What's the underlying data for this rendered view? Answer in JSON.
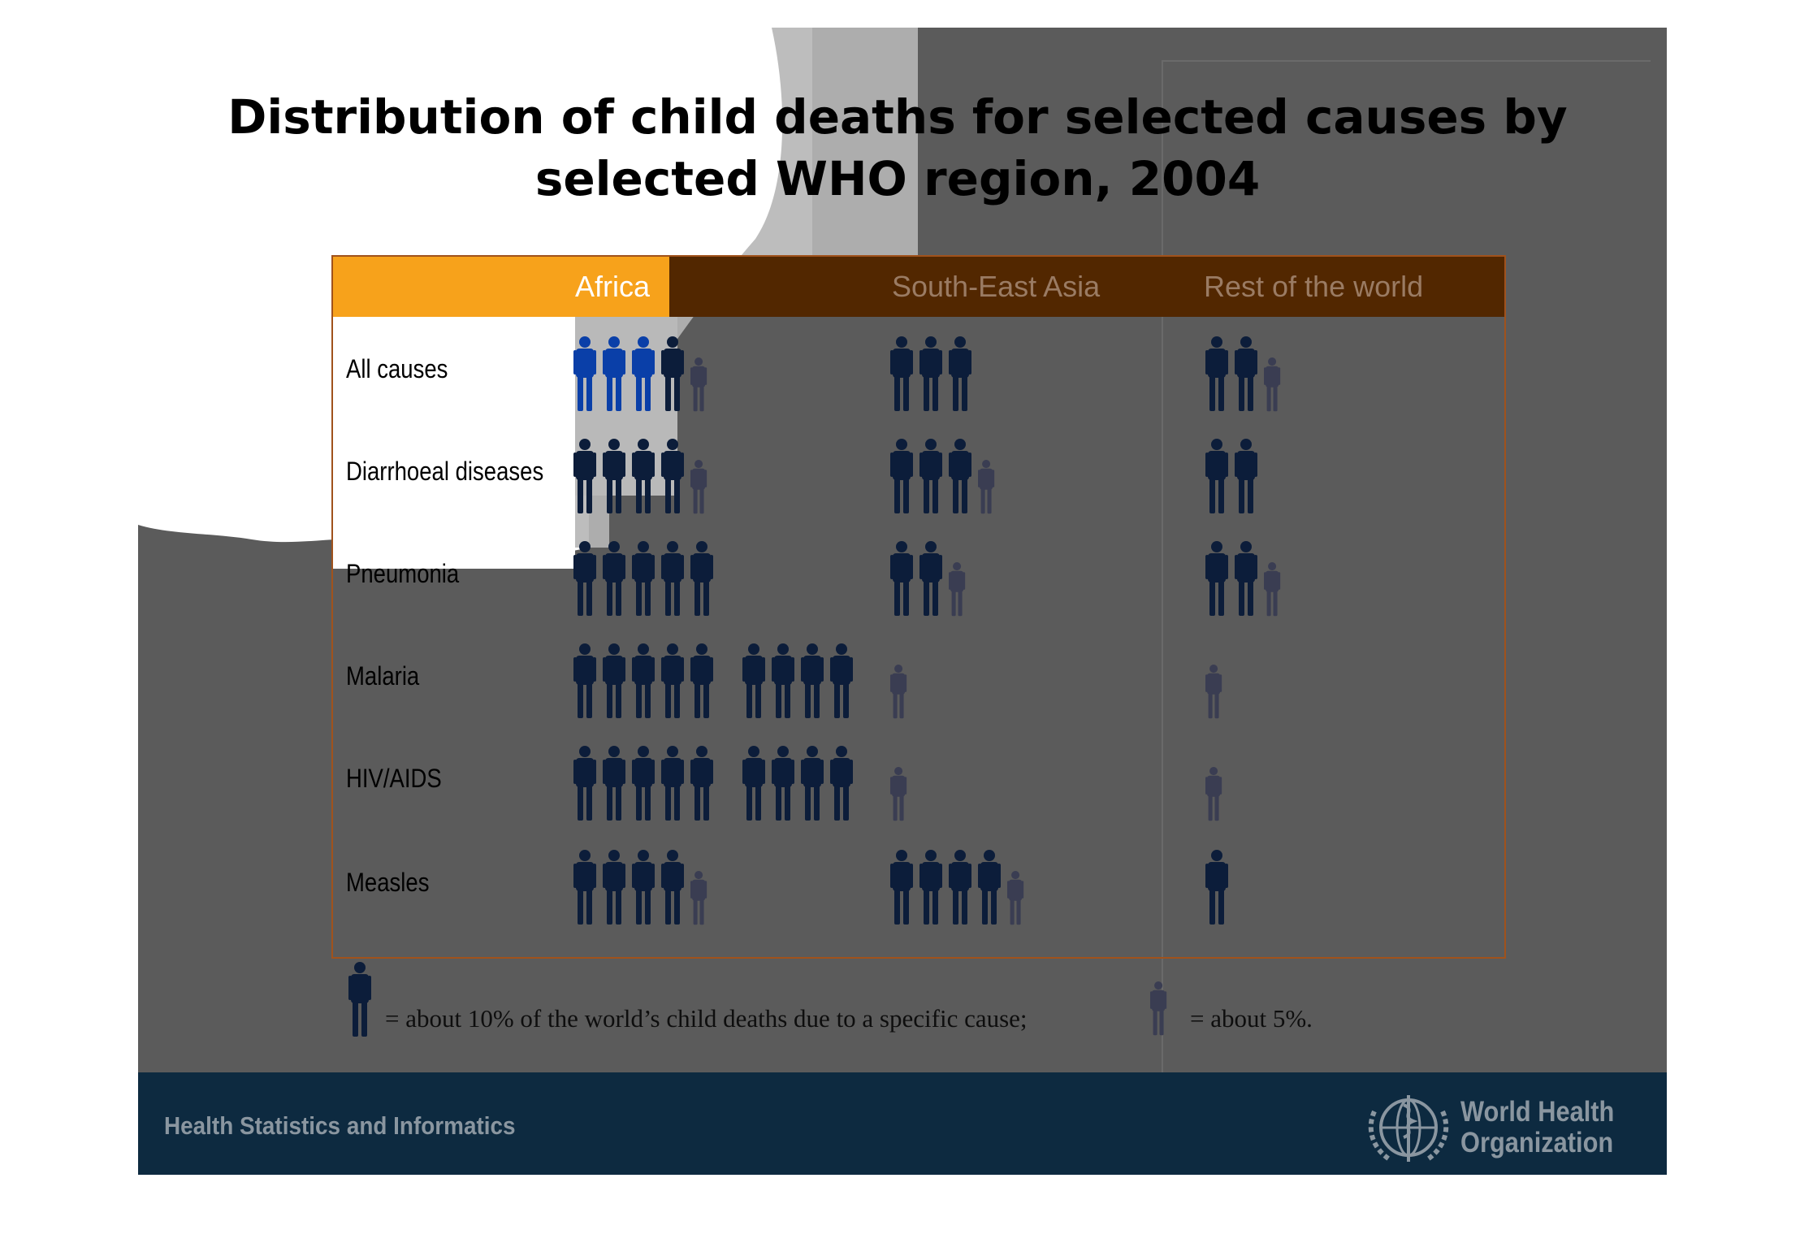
{
  "title_lines": [
    "Distribution of child deaths for selected causes by",
    "selected WHO region, 2004"
  ],
  "colors": {
    "figure_large": "#0c1d3a",
    "figure_small": "#3a3d52",
    "figure_highlight": "#0a3fa8",
    "header_orange": "#f7a21b",
    "header_brown": "#522700",
    "footer": "#0d2a40",
    "background": "#5b5b5b"
  },
  "chart_data": {
    "type": "table",
    "columns": [
      "Africa",
      "South-East Asia",
      "Rest of the world"
    ],
    "rows": [
      {
        "label": "All causes",
        "values": [
          45,
          30,
          25
        ]
      },
      {
        "label": "Diarrhoeal diseases",
        "values": [
          45,
          35,
          20
        ]
      },
      {
        "label": "Pneumonia",
        "values": [
          50,
          25,
          25
        ]
      },
      {
        "label": "Malaria",
        "values": [
          90,
          5,
          5
        ]
      },
      {
        "label": "HIV/AIDS",
        "values": [
          90,
          5,
          5
        ]
      },
      {
        "label": "Measles",
        "values": [
          45,
          45,
          10
        ]
      }
    ],
    "unit": "%"
  },
  "legend": {
    "large_text": "= about 10% of the world’s child deaths due to a specific cause;",
    "small_text": "= about 5%.",
    "large_value": 10,
    "small_value": 5
  },
  "footer": {
    "left_text": "Health Statistics and Informatics",
    "org_line1": "World Health",
    "org_line2": "Organization",
    "emblem": "who-emblem-icon"
  }
}
